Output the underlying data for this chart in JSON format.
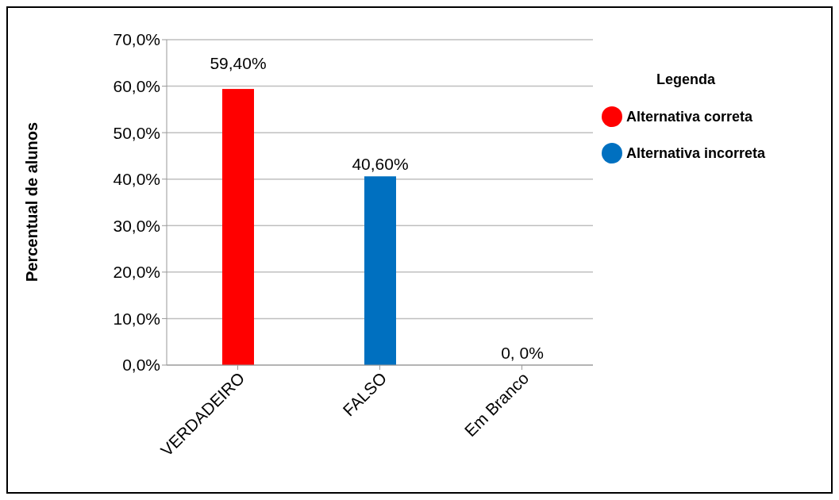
{
  "chart_data": {
    "type": "bar",
    "ylabel": "Percentual de alunos",
    "legend_title": "Legenda",
    "categories": [
      "VERDADEIRO",
      "FALSO",
      "Em Branco"
    ],
    "stacked": true,
    "series": [
      {
        "name": "Alternativa correta",
        "color": "#ff0000",
        "values": [
          59.4,
          null,
          null
        ],
        "value_labels": [
          "59,40%",
          null,
          null
        ]
      },
      {
        "name": "Alternativa incorreta",
        "color": "#0070c0",
        "values": [
          null,
          40.6,
          0
        ],
        "value_labels": [
          null,
          "40,60%",
          "0, 0%"
        ]
      }
    ],
    "ylim": [
      0,
      70
    ],
    "yticks": [
      {
        "value": 0,
        "label": "0,0%"
      },
      {
        "value": 10,
        "label": "10,0%"
      },
      {
        "value": 20,
        "label": "20,0%"
      },
      {
        "value": 30,
        "label": "30,0%"
      },
      {
        "value": 40,
        "label": "40,0%"
      },
      {
        "value": 50,
        "label": "50,0%"
      },
      {
        "value": 60,
        "label": "60,0%"
      },
      {
        "value": 70,
        "label": "70,0%"
      }
    ],
    "grid": "y",
    "legend": "right"
  }
}
